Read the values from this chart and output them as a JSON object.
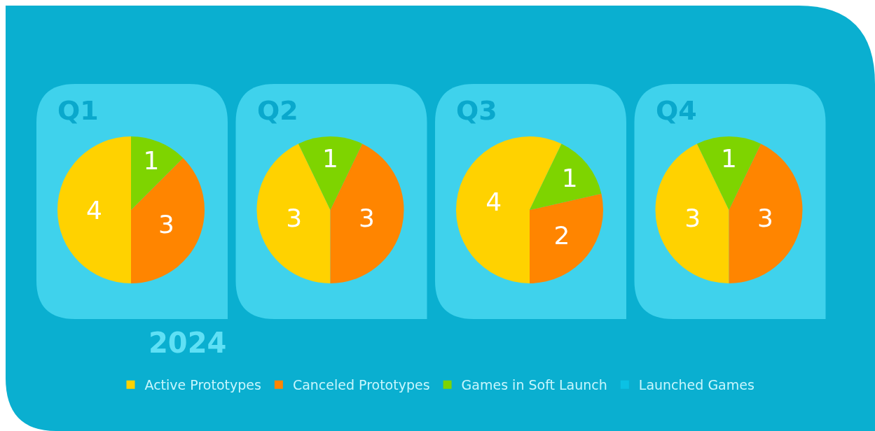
{
  "chart_data": {
    "type": "pie",
    "annotations": [
      "2024"
    ],
    "categories": [
      "Active Prototypes",
      "Canceled Prototypes",
      "Games in Soft Launch",
      "Launched Games"
    ],
    "colors": [
      "#ffd200",
      "#ff8500",
      "#7ed400",
      "#0bc1e4"
    ],
    "data_labels": true,
    "legend": "bottom",
    "series": [
      {
        "name": "Q1",
        "values": [
          4,
          3,
          1,
          0
        ]
      },
      {
        "name": "Q2",
        "values": [
          3,
          3,
          1,
          0
        ]
      },
      {
        "name": "Q3",
        "values": [
          4,
          2,
          1,
          0
        ]
      },
      {
        "name": "Q4",
        "values": [
          3,
          3,
          1,
          0
        ]
      }
    ]
  }
}
